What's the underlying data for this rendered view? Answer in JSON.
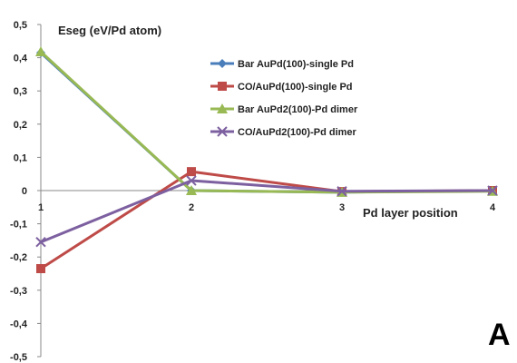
{
  "chart_data": {
    "type": "line",
    "ylabel": "Eseg (eV/Pd atom)",
    "xlabel": "Pd layer position",
    "panel_label": "A",
    "x": [
      1,
      2,
      3,
      4
    ],
    "xlim": [
      1,
      4
    ],
    "ylim": [
      -0.5,
      0.5
    ],
    "y_ticks": [
      "0,5",
      "0,4",
      "0,3",
      "0,2",
      "0,1",
      "0",
      "-0,1",
      "-0,2",
      "-0,3",
      "-0,4",
      "-0,5"
    ],
    "y_tick_values": [
      0.5,
      0.4,
      0.3,
      0.2,
      0.1,
      0,
      -0.1,
      -0.2,
      -0.3,
      -0.4,
      -0.5
    ],
    "x_ticks": [
      "1",
      "2",
      "3",
      "4"
    ],
    "legend_position": "upper-right",
    "grid": false,
    "series": [
      {
        "name": "Bar AuPd(100)-single Pd",
        "values": [
          0.415,
          0.0,
          -0.005,
          0.0
        ],
        "color": "#4a7ebb",
        "marker": "diamond"
      },
      {
        "name": "CO/AuPd(100)-single Pd",
        "values": [
          -0.235,
          0.057,
          -0.003,
          0.0
        ],
        "color": "#be4b48",
        "marker": "square"
      },
      {
        "name": "Bar AuPd2(100)-Pd dimer",
        "values": [
          0.418,
          0.0,
          -0.005,
          -0.002
        ],
        "color": "#98b954",
        "marker": "triangle"
      },
      {
        "name": "CO/AuPd2(100)-Pd dimer",
        "values": [
          -0.155,
          0.03,
          -0.002,
          0.0
        ],
        "color": "#7d60a0",
        "marker": "cross"
      }
    ]
  }
}
